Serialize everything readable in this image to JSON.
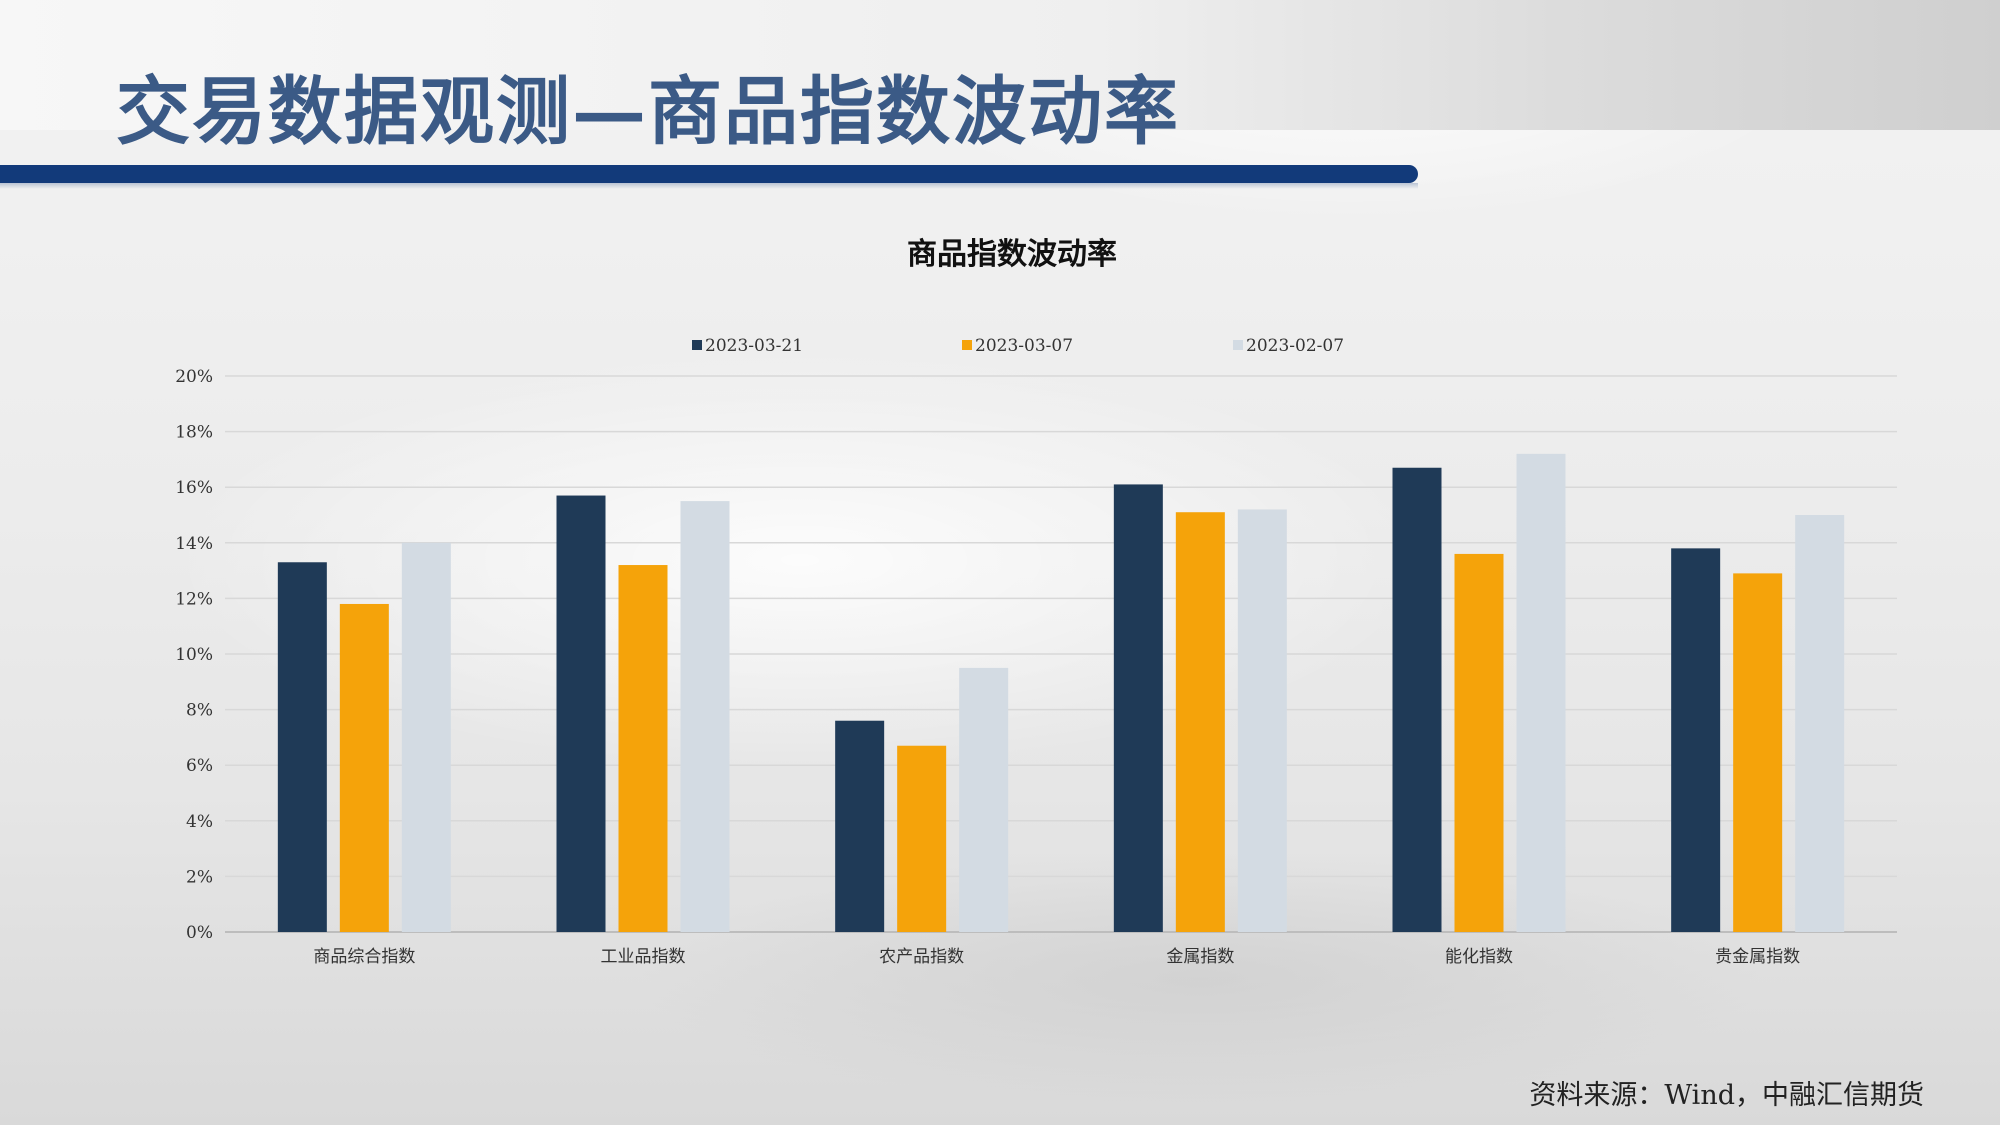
{
  "header": {
    "title": "交易数据观测—商品指数波动率"
  },
  "source": "资料来源：Wind，中融汇信期货",
  "colors": {
    "header_title": "#3b5a86",
    "header_bar": "#123a7a"
  },
  "chart_data": {
    "type": "bar",
    "title": "商品指数波动率",
    "categories": [
      "商品综合指数",
      "工业品指数",
      "农产品指数",
      "金属指数",
      "能化指数",
      "贵金属指数"
    ],
    "series": [
      {
        "name": "2023-03-21",
        "color": "#1f3a57",
        "values": [
          13.3,
          15.7,
          7.6,
          16.1,
          16.7,
          13.8
        ]
      },
      {
        "name": "2023-03-07",
        "color": "#f5a30a",
        "values": [
          11.8,
          13.2,
          6.7,
          15.1,
          13.6,
          12.9
        ]
      },
      {
        "name": "2023-02-07",
        "color": "#d3dbe3",
        "values": [
          14.0,
          15.5,
          9.5,
          15.2,
          17.2,
          15.0
        ]
      }
    ],
    "ylim": [
      0,
      20
    ],
    "yticks": [
      "0%",
      "2%",
      "4%",
      "6%",
      "8%",
      "10%",
      "12%",
      "14%",
      "16%",
      "18%",
      "20%"
    ],
    "grid": true,
    "legend": "top"
  }
}
